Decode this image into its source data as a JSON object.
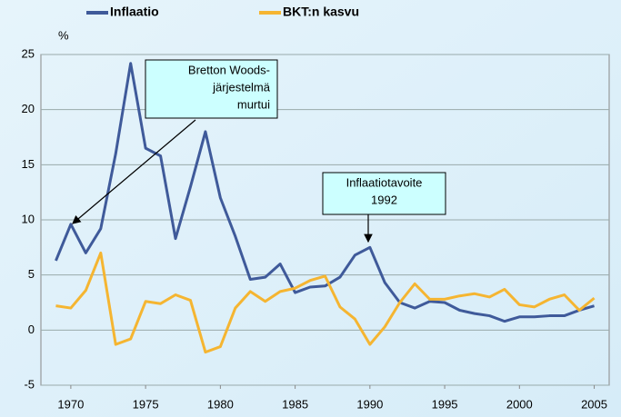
{
  "chart_data": {
    "type": "line",
    "y_unit": "%",
    "x": [
      1969,
      1970,
      1971,
      1972,
      1973,
      1974,
      1975,
      1976,
      1977,
      1978,
      1979,
      1980,
      1981,
      1982,
      1983,
      1984,
      1985,
      1986,
      1987,
      1988,
      1989,
      1990,
      1991,
      1992,
      1993,
      1994,
      1995,
      1996,
      1997,
      1998,
      1999,
      2000,
      2001,
      2002,
      2003,
      2004,
      2005
    ],
    "series": [
      {
        "name": "Inflaatio",
        "color": "#3f5a9a",
        "values": [
          6.3,
          9.6,
          7.0,
          9.2,
          16.0,
          24.2,
          16.5,
          15.8,
          8.3,
          13.0,
          18.0,
          12.0,
          8.5,
          4.6,
          4.8,
          6.0,
          3.4,
          3.9,
          4.0,
          4.8,
          6.8,
          7.5,
          4.3,
          2.5,
          2.0,
          2.6,
          2.5,
          1.8,
          1.5,
          1.3,
          0.8,
          1.2,
          1.2,
          1.3,
          1.3,
          1.8,
          2.2
        ]
      },
      {
        "name": "BKT:n kasvu",
        "color": "#f5b531",
        "values": [
          2.2,
          2.0,
          3.6,
          7.0,
          -1.3,
          -0.8,
          2.6,
          2.4,
          3.2,
          2.7,
          -2.0,
          -1.5,
          2.0,
          3.5,
          2.6,
          3.5,
          3.8,
          4.5,
          4.9,
          2.1,
          1.0,
          -1.3,
          0.3,
          2.5,
          4.2,
          2.8,
          2.8,
          3.1,
          3.3,
          3.0,
          3.7,
          2.3,
          2.1,
          2.8,
          3.2,
          1.8,
          2.9
        ]
      }
    ],
    "xlim": [
      1968,
      2006
    ],
    "xticks": [
      1970,
      1975,
      1980,
      1985,
      1990,
      1995,
      2000,
      2005
    ],
    "ylim": [
      -5,
      25
    ],
    "yticks": [
      -5,
      0,
      5,
      10,
      15,
      20,
      25
    ],
    "grid": true,
    "annotations": [
      {
        "lines": [
          "Bretton Woods-",
          "järjestelmä",
          "murtui"
        ]
      },
      {
        "lines": [
          "Inflaatiotavoite",
          "1992"
        ]
      }
    ]
  }
}
